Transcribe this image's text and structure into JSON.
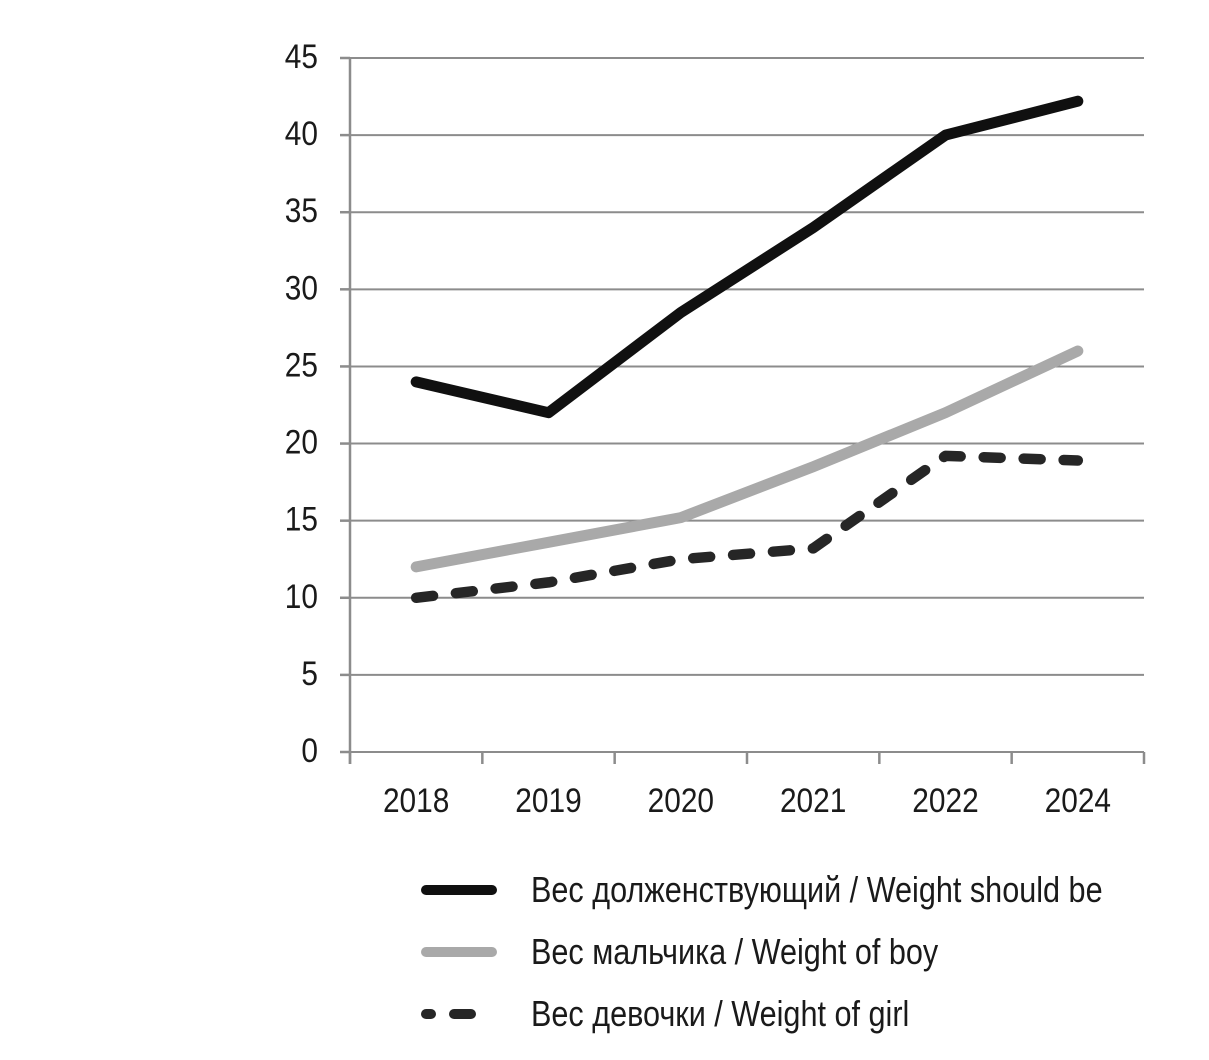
{
  "chart_data": {
    "type": "line",
    "title": "",
    "xlabel": "",
    "ylabel": "",
    "categories": [
      "2018",
      "2019",
      "2020",
      "2021",
      "2022",
      "2024"
    ],
    "y_axis": {
      "min": 0,
      "max": 45,
      "tick_step": 5,
      "ticks": [
        0,
        5,
        10,
        15,
        20,
        25,
        30,
        35,
        40,
        45
      ]
    },
    "grid": "horizontal",
    "legend_position": "bottom-left",
    "axis_color": "#8c8c8c",
    "label_color": "#1a1a1a",
    "series": [
      {
        "name": "Вес долженствующий / Weight should be",
        "style": "solid",
        "color": "#101010",
        "values": [
          24,
          22,
          28.5,
          34,
          40,
          42.2
        ]
      },
      {
        "name": "Вес мальчика / Weight of boy",
        "style": "solid",
        "color": "#a9a9a9",
        "values": [
          12,
          13.6,
          15.2,
          18.5,
          22,
          26
        ]
      },
      {
        "name": "Вес девочки / Weight of girl",
        "style": "dashed",
        "color": "#262626",
        "values": [
          10,
          11,
          12.5,
          13.2,
          19.2,
          18.9
        ]
      }
    ]
  }
}
